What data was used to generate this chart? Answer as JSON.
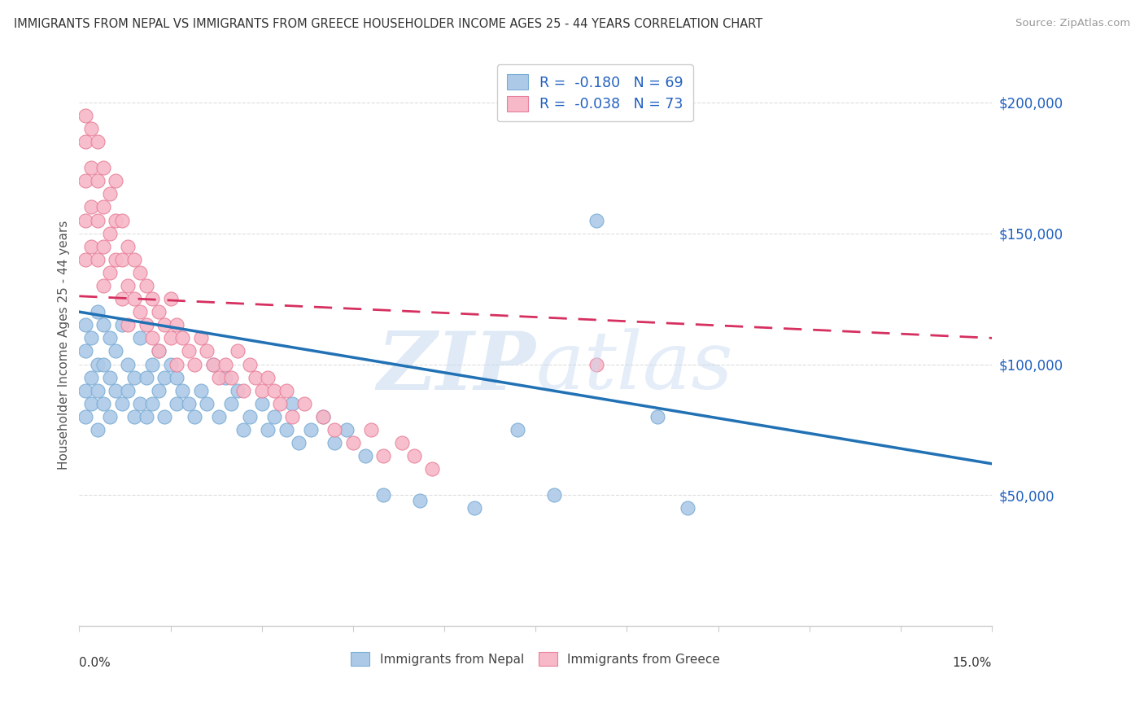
{
  "title": "IMMIGRANTS FROM NEPAL VS IMMIGRANTS FROM GREECE HOUSEHOLDER INCOME AGES 25 - 44 YEARS CORRELATION CHART",
  "source": "Source: ZipAtlas.com",
  "ylabel": "Householder Income Ages 25 - 44 years",
  "xlim": [
    0.0,
    0.15
  ],
  "ylim": [
    0,
    215000
  ],
  "nepal_color": "#adc9e8",
  "nepal_edge": "#7aadd4",
  "nepal_line_color": "#2171b5",
  "greece_color": "#f7b8c8",
  "greece_edge": "#e8809a",
  "greece_line_color": "#d63060",
  "nepal_R": -0.18,
  "nepal_N": 69,
  "greece_R": -0.038,
  "greece_N": 73,
  "nepal_line_x0": 0.0,
  "nepal_line_y0": 120000,
  "nepal_line_x1": 0.15,
  "nepal_line_y1": 62000,
  "greece_line_x0": 0.0,
  "greece_line_y0": 126000,
  "greece_line_x1": 0.15,
  "greece_line_y1": 110000,
  "nepal_x": [
    0.001,
    0.001,
    0.001,
    0.001,
    0.002,
    0.002,
    0.002,
    0.003,
    0.003,
    0.003,
    0.003,
    0.004,
    0.004,
    0.004,
    0.005,
    0.005,
    0.005,
    0.006,
    0.006,
    0.007,
    0.007,
    0.008,
    0.008,
    0.009,
    0.009,
    0.01,
    0.01,
    0.011,
    0.011,
    0.012,
    0.012,
    0.013,
    0.013,
    0.014,
    0.014,
    0.015,
    0.016,
    0.016,
    0.017,
    0.018,
    0.019,
    0.02,
    0.021,
    0.022,
    0.023,
    0.024,
    0.025,
    0.026,
    0.027,
    0.028,
    0.03,
    0.031,
    0.032,
    0.034,
    0.035,
    0.036,
    0.038,
    0.04,
    0.042,
    0.044,
    0.047,
    0.05,
    0.056,
    0.065,
    0.072,
    0.078,
    0.085,
    0.095,
    0.1
  ],
  "nepal_y": [
    90000,
    105000,
    115000,
    80000,
    95000,
    110000,
    85000,
    100000,
    120000,
    90000,
    75000,
    115000,
    85000,
    100000,
    95000,
    110000,
    80000,
    105000,
    90000,
    115000,
    85000,
    100000,
    90000,
    95000,
    80000,
    110000,
    85000,
    95000,
    80000,
    100000,
    85000,
    90000,
    105000,
    80000,
    95000,
    100000,
    85000,
    95000,
    90000,
    85000,
    80000,
    90000,
    85000,
    100000,
    80000,
    95000,
    85000,
    90000,
    75000,
    80000,
    85000,
    75000,
    80000,
    75000,
    85000,
    70000,
    75000,
    80000,
    70000,
    75000,
    65000,
    50000,
    48000,
    45000,
    75000,
    50000,
    155000,
    80000,
    45000
  ],
  "greece_x": [
    0.001,
    0.001,
    0.001,
    0.001,
    0.001,
    0.002,
    0.002,
    0.002,
    0.002,
    0.003,
    0.003,
    0.003,
    0.003,
    0.004,
    0.004,
    0.004,
    0.004,
    0.005,
    0.005,
    0.005,
    0.006,
    0.006,
    0.006,
    0.007,
    0.007,
    0.007,
    0.008,
    0.008,
    0.008,
    0.009,
    0.009,
    0.01,
    0.01,
    0.011,
    0.011,
    0.012,
    0.012,
    0.013,
    0.013,
    0.014,
    0.015,
    0.015,
    0.016,
    0.016,
    0.017,
    0.018,
    0.019,
    0.02,
    0.021,
    0.022,
    0.023,
    0.024,
    0.025,
    0.026,
    0.027,
    0.028,
    0.029,
    0.03,
    0.031,
    0.032,
    0.033,
    0.034,
    0.035,
    0.037,
    0.04,
    0.042,
    0.045,
    0.048,
    0.05,
    0.053,
    0.055,
    0.058,
    0.085
  ],
  "greece_y": [
    195000,
    185000,
    170000,
    155000,
    140000,
    190000,
    175000,
    160000,
    145000,
    185000,
    170000,
    155000,
    140000,
    175000,
    160000,
    145000,
    130000,
    165000,
    150000,
    135000,
    170000,
    155000,
    140000,
    155000,
    140000,
    125000,
    145000,
    130000,
    115000,
    140000,
    125000,
    135000,
    120000,
    130000,
    115000,
    125000,
    110000,
    120000,
    105000,
    115000,
    125000,
    110000,
    115000,
    100000,
    110000,
    105000,
    100000,
    110000,
    105000,
    100000,
    95000,
    100000,
    95000,
    105000,
    90000,
    100000,
    95000,
    90000,
    95000,
    90000,
    85000,
    90000,
    80000,
    85000,
    80000,
    75000,
    70000,
    75000,
    65000,
    70000,
    65000,
    60000,
    100000
  ]
}
